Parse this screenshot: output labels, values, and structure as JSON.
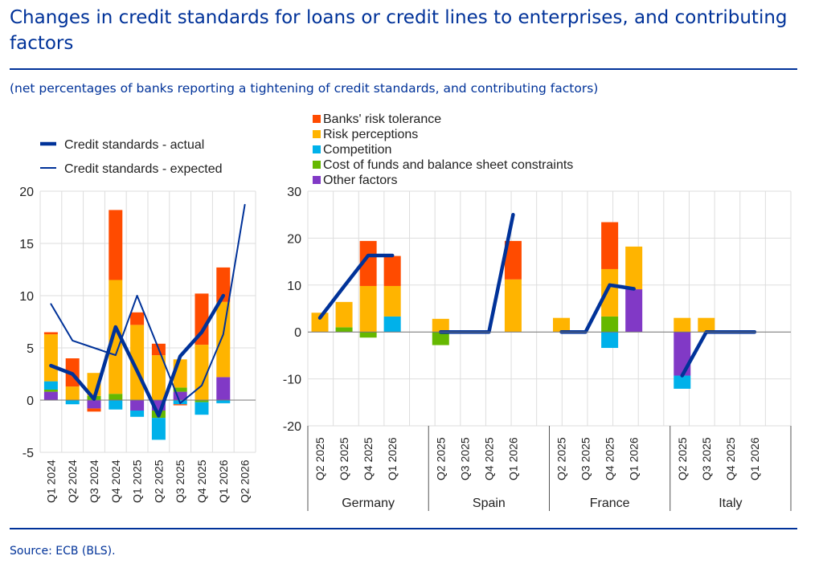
{
  "title": "Changes in credit standards for loans or credit lines to enterprises, and contributing factors",
  "subtitle": "(net percentages of banks reporting a tightening of credit standards, and contributing factors)",
  "source": "Source: ECB (BLS).",
  "colors": {
    "Banks' risk tolerance": "#ff4b00",
    "Risk perceptions": "#ffb400",
    "Competition": "#00b1ea",
    "Cost of funds and balance sheet constraints": "#65b800",
    "Other factors": "#8139c6",
    "line": "#003299"
  },
  "chart_data": [
    {
      "type": "bar",
      "stacked": true,
      "ylim": [
        -5,
        20
      ],
      "yticks": [
        -5,
        0,
        5,
        10,
        15,
        20
      ],
      "grid": true,
      "categories": [
        "Q1 2024",
        "Q2 2024",
        "Q3 2024",
        "Q4 2024",
        "Q1 2025",
        "Q2 2025",
        "Q3 2025",
        "Q4 2025",
        "Q1 2026",
        "Q2 2026"
      ],
      "legend": [
        "Credit standards - actual",
        "Credit standards - expected"
      ],
      "series": [
        {
          "name": "Other factors",
          "values": [
            0.8,
            0,
            -0.8,
            0,
            -1.0,
            -1.0,
            0.8,
            0,
            2.2,
            null
          ]
        },
        {
          "name": "Cost of funds and balance sheet constraints",
          "values": [
            0.2,
            0,
            0.4,
            0.6,
            0,
            -0.7,
            0.4,
            -0.2,
            0,
            null
          ]
        },
        {
          "name": "Competition",
          "values": [
            0.8,
            -0.4,
            0,
            -0.9,
            -0.6,
            -2.1,
            -0.4,
            -1.2,
            -0.3,
            null
          ]
        },
        {
          "name": "Risk perceptions",
          "values": [
            4.5,
            1.3,
            2.2,
            10.9,
            7.2,
            4.3,
            2.7,
            5.3,
            7.2,
            null
          ]
        },
        {
          "name": "Banks' risk tolerance",
          "values": [
            0.2,
            2.7,
            -0.3,
            6.7,
            1.2,
            1.1,
            -0.1,
            4.9,
            3.3,
            null
          ]
        }
      ],
      "lines": [
        {
          "name": "Credit standards - actual",
          "values": [
            3.3,
            2.5,
            0.1,
            7.0,
            2.8,
            -1.5,
            4.2,
            6.5,
            10.0,
            null
          ]
        },
        {
          "name": "Credit standards - expected",
          "values": [
            9.2,
            5.7,
            5.0,
            4.3,
            10.0,
            4.9,
            -0.3,
            1.4,
            6.3,
            18.7
          ]
        }
      ]
    },
    {
      "type": "bar",
      "stacked": true,
      "ylim": [
        -20,
        30
      ],
      "yticks": [
        -20,
        -10,
        0,
        10,
        20,
        30
      ],
      "grid": true,
      "groups": [
        "Germany",
        "Spain",
        "France",
        "Italy"
      ],
      "categories": [
        "Q2 2025",
        "Q3 2025",
        "Q4 2025",
        "Q1 2026"
      ],
      "legend": [
        "Banks' risk tolerance",
        "Risk perceptions",
        "Competition",
        "Cost of funds and balance sheet constraints",
        "Other factors"
      ],
      "series": [
        {
          "name": "Other factors",
          "values": [
            [
              0,
              0,
              0,
              0
            ],
            [
              0,
              0,
              0,
              0
            ],
            [
              0,
              0,
              0,
              9.1
            ],
            [
              -9.3,
              0,
              0,
              0
            ]
          ]
        },
        {
          "name": "Cost of funds and balance sheet constraints",
          "values": [
            [
              0,
              1.0,
              -1.2,
              0
            ],
            [
              -2.8,
              0,
              0,
              0
            ],
            [
              0,
              0,
              3.3,
              0
            ],
            [
              0,
              0,
              0,
              0
            ]
          ]
        },
        {
          "name": "Competition",
          "values": [
            [
              0,
              0,
              0,
              3.3
            ],
            [
              0,
              0,
              0,
              0
            ],
            [
              0,
              0,
              -3.4,
              0
            ],
            [
              -2.8,
              0,
              0,
              0
            ]
          ]
        },
        {
          "name": "Risk perceptions",
          "values": [
            [
              4.1,
              5.4,
              9.8,
              6.5
            ],
            [
              2.8,
              0,
              0,
              11.2
            ],
            [
              3.0,
              0,
              10.1,
              9.1
            ],
            [
              3.0,
              3.0,
              0,
              0
            ]
          ]
        },
        {
          "name": "Banks' risk tolerance",
          "values": [
            [
              0,
              0,
              9.6,
              6.4
            ],
            [
              0,
              0,
              0,
              8.2
            ],
            [
              0,
              0,
              10.0,
              0
            ],
            [
              0,
              0,
              0,
              0
            ]
          ]
        }
      ],
      "lines": [
        {
          "name": "Credit standards - actual",
          "values": [
            [
              3.0,
              9.7,
              16.3,
              16.3
            ],
            [
              0,
              0,
              0,
              25.0
            ],
            [
              0,
              0,
              10.0,
              9.2
            ],
            [
              -9.3,
              0,
              0,
              0
            ]
          ]
        }
      ]
    }
  ]
}
